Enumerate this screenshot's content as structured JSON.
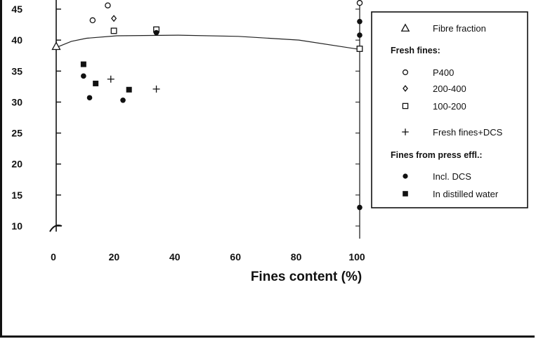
{
  "chart_data": {
    "type": "scatter",
    "xlabel": "Fines content (%)",
    "ylabel": "",
    "xlim": [
      0,
      100
    ],
    "ylim": [
      10,
      47
    ],
    "x_ticks": [
      "0",
      "20",
      "40",
      "60",
      "80",
      "100"
    ],
    "y_ticks": [
      "10",
      "15",
      "20",
      "25",
      "30",
      "35",
      "40",
      "45"
    ],
    "legend": {
      "placement": "right",
      "entries": [
        {
          "key": "fibre",
          "marker": "triangle-open",
          "label": "Fibre fraction"
        },
        {
          "heading": "Fresh fines:"
        },
        {
          "key": "p400",
          "marker": "circle-open",
          "label": "P400"
        },
        {
          "key": "s200_400",
          "marker": "diamond-open",
          "label": "200-400"
        },
        {
          "key": "s100_200",
          "marker": "square-open",
          "label": "100-200"
        },
        {
          "key": "fresh_dcs",
          "marker": "plus",
          "label": "Fresh fines+DCS"
        },
        {
          "heading": "Fines from press effl.:"
        },
        {
          "key": "incl_dcs",
          "marker": "circle-filled",
          "label": "Incl. DCS"
        },
        {
          "key": "distilled",
          "marker": "square-filled",
          "label": "In distilled water"
        }
      ]
    },
    "series": [
      {
        "key": "fibre",
        "marker": "triangle-open",
        "points": [
          [
            0,
            39.0
          ]
        ]
      },
      {
        "key": "p400",
        "marker": "circle-open",
        "points": [
          [
            12,
            43.2
          ],
          [
            17,
            45.6
          ],
          [
            100,
            46.0
          ]
        ]
      },
      {
        "key": "s200_400",
        "marker": "diamond-open",
        "points": [
          [
            19,
            43.5
          ]
        ]
      },
      {
        "key": "s100_200",
        "marker": "square-open",
        "points": [
          [
            19,
            41.5
          ],
          [
            33,
            41.7
          ],
          [
            100,
            38.6
          ]
        ]
      },
      {
        "key": "fresh_dcs",
        "marker": "plus",
        "points": [
          [
            18,
            33.7
          ],
          [
            33,
            32.1
          ]
        ]
      },
      {
        "key": "incl_dcs",
        "marker": "circle-filled",
        "points": [
          [
            9,
            34.2
          ],
          [
            11,
            30.7
          ],
          [
            22,
            30.3
          ],
          [
            33,
            41.2
          ],
          [
            100,
            43.0
          ],
          [
            100,
            40.8
          ],
          [
            100,
            13.0
          ]
        ]
      },
      {
        "key": "distilled",
        "marker": "square-filled",
        "points": [
          [
            9,
            36.1
          ],
          [
            13,
            33.0
          ],
          [
            24,
            32.0
          ]
        ]
      }
    ],
    "curve": [
      [
        0,
        38.8
      ],
      [
        5,
        39.8
      ],
      [
        10,
        40.3
      ],
      [
        20,
        40.7
      ],
      [
        40,
        40.8
      ],
      [
        60,
        40.6
      ],
      [
        80,
        40.0
      ],
      [
        100,
        38.5
      ]
    ]
  }
}
